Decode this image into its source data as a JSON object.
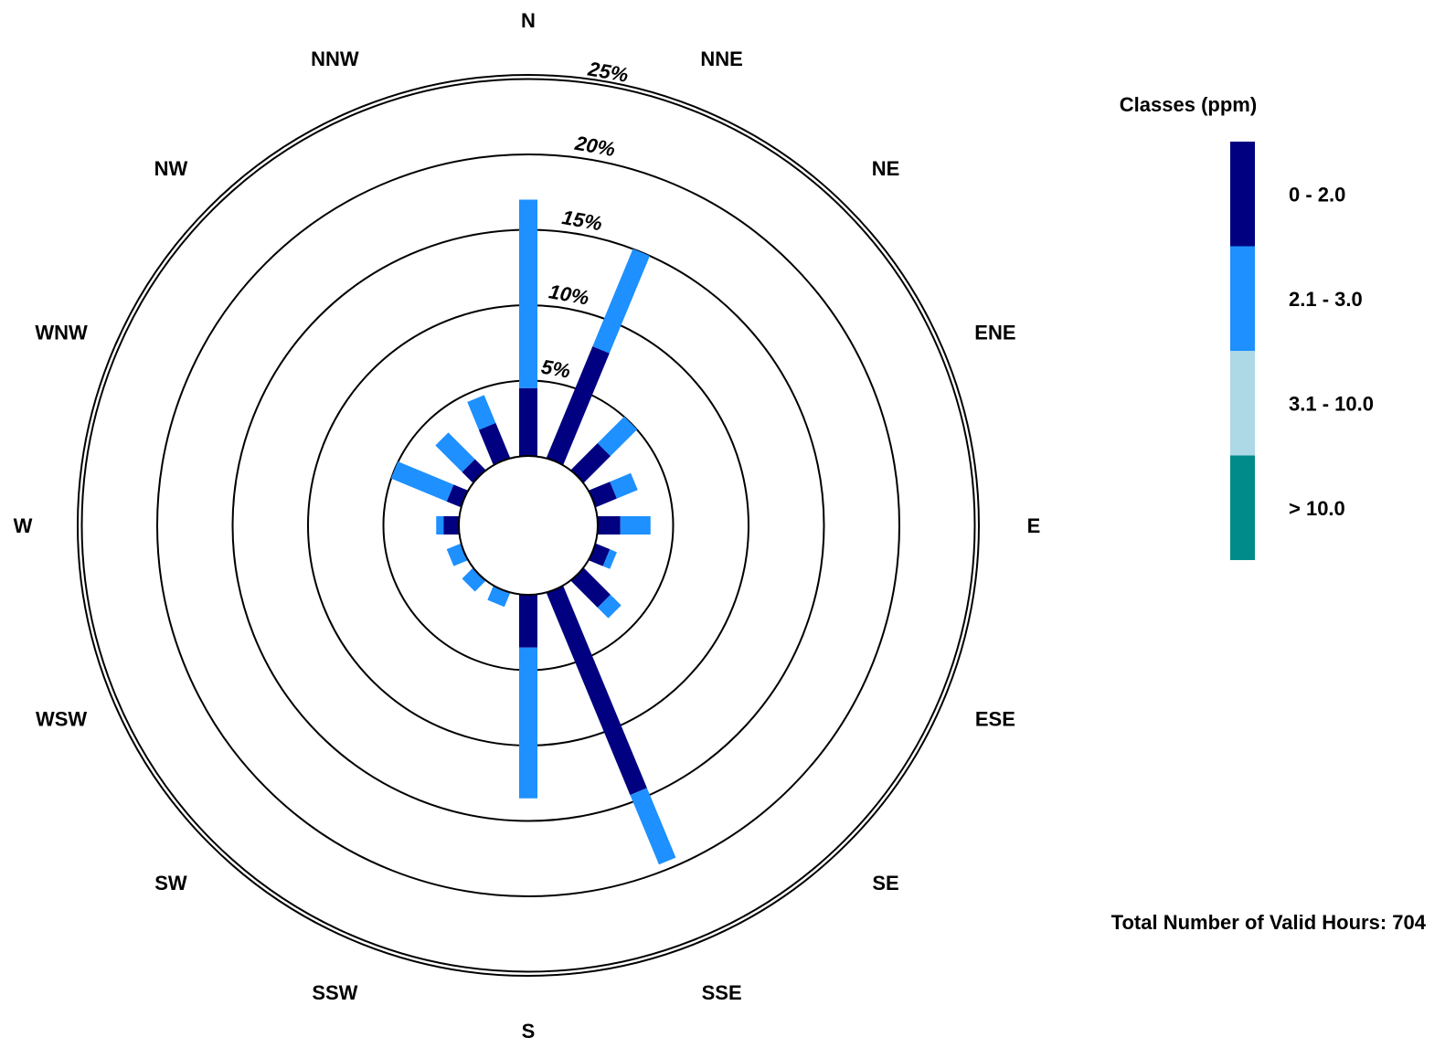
{
  "chart_data": {
    "type": "wind-rose",
    "directions": [
      "N",
      "NNE",
      "NE",
      "ENE",
      "E",
      "ESE",
      "SE",
      "SSE",
      "S",
      "SSW",
      "SW",
      "WSW",
      "W",
      "WNW",
      "NW",
      "NNW"
    ],
    "direction_label_order": [
      "N",
      "NNE",
      "NE",
      "ENE",
      "E",
      "ESE",
      "SE",
      "SSE",
      "S",
      "SSW",
      "SW",
      "WSW",
      "W",
      "WNW",
      "NW",
      "NNW"
    ],
    "rings": [
      5,
      10,
      15,
      20,
      25
    ],
    "ring_labels": [
      "5%",
      "10%",
      "15%",
      "20%",
      "25%"
    ],
    "classes": [
      {
        "name": "0 - 2.0",
        "color": "#000080"
      },
      {
        "name": "2.1 - 3.0",
        "color": "#1E90FF"
      },
      {
        "name": "3.1 - 10.0",
        "color": "#ADD8E6"
      },
      {
        "name": "> 10.0",
        "color": "#008B8B"
      }
    ],
    "series": [
      {
        "name": "0 - 2.0",
        "values": [
          4.5,
          8.0,
          2.5,
          1.5,
          1.5,
          1.0,
          2.5,
          14.5,
          3.5,
          0.0,
          0.0,
          0.0,
          1.0,
          1.0,
          1.0,
          2.5
        ]
      },
      {
        "name": "2.1 - 3.0",
        "values": [
          12.5,
          7.0,
          2.5,
          1.5,
          2.0,
          0.5,
          1.0,
          5.0,
          10.0,
          1.0,
          1.0,
          1.0,
          0.5,
          4.0,
          2.5,
          2.0
        ]
      },
      {
        "name": "3.1 - 10.0",
        "values": [
          0,
          0,
          0,
          0,
          0,
          0,
          0,
          0,
          0,
          0,
          0,
          0,
          0,
          0,
          0,
          0
        ]
      },
      {
        "name": "> 10.0",
        "values": [
          0,
          0,
          0,
          0,
          0,
          0,
          0,
          0,
          0,
          0,
          0,
          0,
          0,
          0,
          0,
          0
        ]
      }
    ],
    "legend_title": "Classes (ppm)",
    "legend_placement": "right"
  },
  "footer": {
    "valid_hours_text": "Total Number of Valid Hours: 704"
  }
}
